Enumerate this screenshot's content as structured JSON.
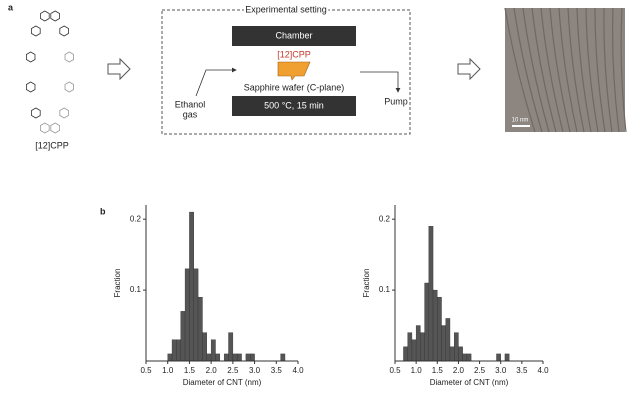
{
  "panel_labels": [
    "a",
    "b"
  ],
  "diagram": {
    "molecule_label": "[12]CPP",
    "box_title": "Experimental setting",
    "chamber": "Chamber",
    "catalyst": "[12]CPP",
    "substrate": "Sapphire wafer (C-plane)",
    "condition": "500 °C, 15 min",
    "ethanol": [
      "Ethanol",
      "gas"
    ],
    "pump": "Pump",
    "scale_bar": "10 nm"
  },
  "chart_data": [
    {
      "type": "histogram",
      "xlabel": "Diameter of CNT (nm)",
      "ylabel": "Fraction",
      "color": "#555555",
      "bins": [
        1.0,
        1.1,
        1.2,
        1.3,
        1.4,
        1.5,
        1.6,
        1.7,
        1.8,
        1.9,
        2.0,
        2.1,
        2.2,
        2.3,
        2.4,
        2.5,
        2.6,
        2.7,
        2.8,
        2.9,
        3.0,
        3.1,
        3.2,
        3.3,
        3.4,
        3.5,
        3.6,
        3.7
      ],
      "counts": [
        0.01,
        0.03,
        0.03,
        0.07,
        0.13,
        0.21,
        0.13,
        0.09,
        0.04,
        0.01,
        0.03,
        0.01,
        0,
        0.01,
        0.04,
        0.01,
        0.01,
        0,
        0.01,
        0.01,
        0,
        0,
        0,
        0,
        0,
        0,
        0.01
      ],
      "xlim": [
        0.5,
        4.0
      ],
      "ylim": [
        0,
        0.22
      ],
      "xticks": [
        0.5,
        {
          "value": 1.0,
          "label": "1.0"
        },
        1.5,
        {
          "value": 2.0,
          "label": "2.0"
        },
        2.5,
        {
          "value": 3.0,
          "label": "3.0"
        },
        3.5,
        {
          "value": 4.0,
          "label": "4.0"
        }
      ],
      "yticks": [
        0.1,
        0.2
      ]
    },
    {
      "type": "histogram",
      "xlabel": "Diameter of CNT (nm)",
      "ylabel": "Fraction",
      "color": "#555555",
      "bins": [
        0.7,
        0.8,
        0.9,
        1.0,
        1.1,
        1.2,
        1.3,
        1.4,
        1.5,
        1.6,
        1.7,
        1.8,
        1.9,
        2.0,
        2.1,
        2.2,
        2.3,
        2.4,
        2.5,
        2.6,
        2.7,
        2.8,
        2.9,
        3.0,
        3.1,
        3.2
      ],
      "counts": [
        0.02,
        0.04,
        0.03,
        0.05,
        0.04,
        0.11,
        0.19,
        0.1,
        0.09,
        0.05,
        0.06,
        0.02,
        0.04,
        0.02,
        0.01,
        0.01,
        0,
        0,
        0,
        0,
        0,
        0,
        0.01,
        0,
        0.01
      ],
      "xlim": [
        0.5,
        4.0
      ],
      "ylim": [
        0,
        0.22
      ],
      "xticks": [
        0.5,
        {
          "value": 1.0,
          "label": "1.0"
        },
        1.5,
        {
          "value": 2.0,
          "label": "2.0"
        },
        2.5,
        {
          "value": 3.0,
          "label": "3.0"
        },
        3.5,
        {
          "value": 4.0,
          "label": "4.0"
        }
      ],
      "yticks": [
        0.1,
        0.2
      ]
    }
  ]
}
